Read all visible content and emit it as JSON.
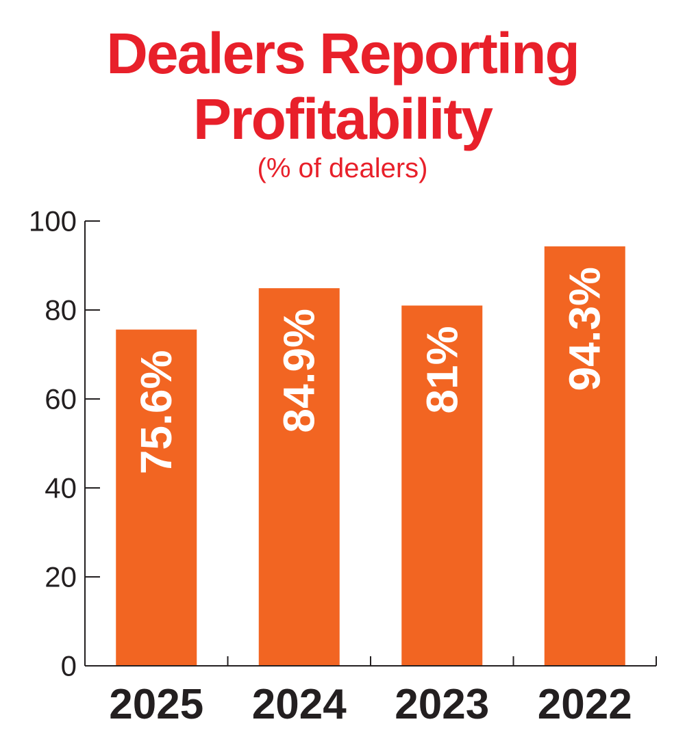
{
  "chart_data": {
    "type": "bar",
    "title": "Dealers Reporting Profitability",
    "subtitle": "(% of dealers)",
    "categories": [
      "2025",
      "2024",
      "2023",
      "2022"
    ],
    "values": [
      75.6,
      84.9,
      81,
      94.3
    ],
    "data_labels": [
      "75.6%",
      "84.9%",
      "81%",
      "94.3%"
    ],
    "yticks": [
      "0",
      "20",
      "40",
      "60",
      "80",
      "100"
    ],
    "ytick_values": [
      0,
      20,
      40,
      60,
      80,
      100
    ],
    "ylim": [
      0,
      100
    ],
    "xlabel": "",
    "ylabel": "",
    "grid": false,
    "legend": "none",
    "colors": {
      "bar": "#f26522",
      "title": "#e8202a",
      "axis": "#231f20",
      "label": "#ffffff"
    }
  }
}
